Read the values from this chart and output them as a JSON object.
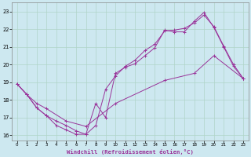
{
  "background_color": "#cde8f0",
  "grid_color": "#b0d4c8",
  "line_color": "#993399",
  "xlim": [
    -0.5,
    23.5
  ],
  "ylim": [
    15.7,
    23.5
  ],
  "xticks": [
    0,
    1,
    2,
    3,
    4,
    5,
    6,
    7,
    8,
    9,
    10,
    11,
    12,
    13,
    14,
    15,
    16,
    17,
    18,
    19,
    20,
    21,
    22,
    23
  ],
  "yticks": [
    16,
    17,
    18,
    19,
    20,
    21,
    22,
    23
  ],
  "xlabel": "Windchill (Refroidissement éolien,°C)",
  "line1_x": [
    0,
    1,
    2,
    3,
    4,
    5,
    6,
    7,
    8,
    9,
    10,
    11,
    12,
    13,
    14,
    15,
    16,
    17,
    18,
    19,
    20,
    21,
    22,
    23
  ],
  "line1_y": [
    18.9,
    18.3,
    17.55,
    17.1,
    16.55,
    16.3,
    16.05,
    16.05,
    17.8,
    17.0,
    19.5,
    19.85,
    20.05,
    20.5,
    20.95,
    21.95,
    21.85,
    21.85,
    22.45,
    22.95,
    22.1,
    21.0,
    19.9,
    19.2
  ],
  "line2_x": [
    0,
    1,
    2,
    3,
    4,
    5,
    6,
    7,
    8,
    9,
    10,
    11,
    12,
    13,
    14,
    15,
    16,
    17,
    18,
    19,
    20,
    21,
    22,
    23
  ],
  "line2_y": [
    18.9,
    18.3,
    17.55,
    17.1,
    16.8,
    16.55,
    16.25,
    16.05,
    16.55,
    18.6,
    19.35,
    19.9,
    20.25,
    20.8,
    21.15,
    21.9,
    21.95,
    22.05,
    22.35,
    22.8,
    22.15,
    21.05,
    20.0,
    19.2
  ],
  "line3_x": [
    0,
    1,
    2,
    3,
    5,
    7,
    10,
    15,
    18,
    20,
    23
  ],
  "line3_y": [
    18.9,
    18.3,
    17.8,
    17.5,
    16.8,
    16.5,
    17.8,
    19.1,
    19.5,
    20.5,
    19.2
  ]
}
